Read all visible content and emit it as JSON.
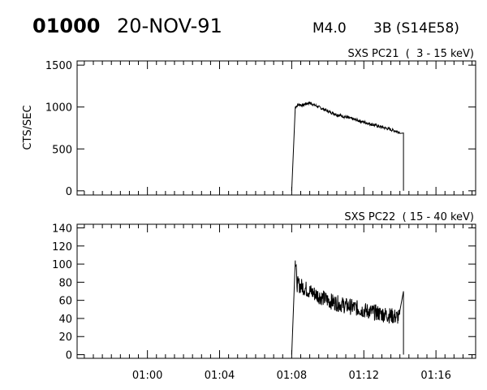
{
  "header": {
    "event_id": "01000",
    "date": "20-NOV-91",
    "flare_class": "M4.0",
    "optical_class": "3B (S14E58)"
  },
  "chart_data": [
    {
      "type": "line",
      "title": "SXS PC21  (  3 - 15 keV)",
      "ylabel": "CTS/SEC",
      "xlabel": "",
      "x_units": "minutes after 00:56 UT",
      "xlim": [
        -1.9,
        20.2
      ],
      "ylim": [
        -50,
        1550
      ],
      "yticks": [
        0,
        500,
        1000,
        1500
      ],
      "xticks": [
        "01:00",
        "01:04",
        "01:08",
        "01:12",
        "01:16"
      ],
      "series": [
        {
          "x": [
            10.0,
            10.2,
            10.4,
            10.6,
            10.8,
            11.0,
            11.3,
            11.6,
            12.0,
            12.5,
            13.0,
            13.5,
            14.0,
            14.5,
            15.0,
            15.5,
            16.0,
            16.2
          ],
          "values": [
            0,
            1000,
            1030,
            1020,
            1040,
            1050,
            1020,
            990,
            950,
            910,
            880,
            850,
            820,
            790,
            760,
            730,
            700,
            690
          ]
        }
      ]
    },
    {
      "type": "line",
      "title": "SXS PC22  ( 15 - 40 keV)",
      "ylabel": "",
      "xlabel": "",
      "x_units": "minutes after 00:56 UT",
      "xlim": [
        -1.9,
        20.2
      ],
      "ylim": [
        -4,
        144
      ],
      "yticks": [
        0,
        20,
        40,
        60,
        80,
        100,
        120,
        140
      ],
      "xticks": [
        "01:00",
        "01:04",
        "01:08",
        "01:12",
        "01:16"
      ],
      "series": [
        {
          "x": [
            10.0,
            10.2,
            10.3,
            10.6,
            11.0,
            11.5,
            12.0,
            12.5,
            13.0,
            13.5,
            14.0,
            14.5,
            15.0,
            15.5,
            16.0,
            16.2
          ],
          "values": [
            0,
            104,
            78,
            75,
            70,
            65,
            60,
            57,
            54,
            52,
            49,
            47,
            45,
            43,
            41,
            70
          ]
        }
      ]
    }
  ]
}
